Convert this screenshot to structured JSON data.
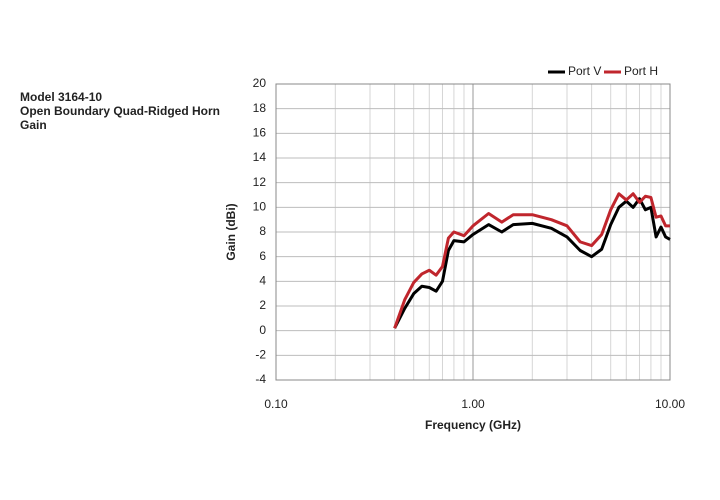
{
  "chart_data": {
    "type": "line",
    "title_lines": [
      "Model 3164-10",
      "Open Boundary Quad-Ridged Horn",
      "Gain"
    ],
    "x_label": "Frequency (GHz)",
    "y_label": "Gain (dBi)",
    "log_x": true,
    "grid": true,
    "legend": "top-right",
    "x": [
      0.4,
      0.45,
      0.5,
      0.55,
      0.6,
      0.65,
      0.7,
      0.75,
      0.8,
      0.9,
      1.0,
      1.2,
      1.4,
      1.6,
      2.0,
      2.5,
      3.0,
      3.5,
      4.0,
      4.5,
      5.0,
      5.5,
      6.0,
      6.5,
      7.0,
      7.5,
      8.0,
      8.5,
      9.0,
      9.5,
      10.0
    ],
    "series": [
      {
        "name": "Port V",
        "color": "#000000",
        "values": [
          0.2,
          1.8,
          3.0,
          3.6,
          3.5,
          3.2,
          4.0,
          6.5,
          7.3,
          7.2,
          7.8,
          8.6,
          8.0,
          8.6,
          8.7,
          8.3,
          7.6,
          6.5,
          6.0,
          6.6,
          8.6,
          10.0,
          10.5,
          10.0,
          10.7,
          9.8,
          10.0,
          7.6,
          8.4,
          7.6,
          7.4
        ]
      },
      {
        "name": "Port H",
        "color": "#c0262d",
        "values": [
          0.2,
          2.5,
          3.9,
          4.6,
          4.9,
          4.5,
          5.2,
          7.5,
          8.0,
          7.7,
          8.5,
          9.5,
          8.8,
          9.4,
          9.4,
          9.0,
          8.5,
          7.2,
          6.9,
          7.8,
          9.8,
          11.1,
          10.6,
          11.1,
          10.4,
          10.9,
          10.8,
          9.2,
          9.3,
          8.5,
          8.5
        ]
      }
    ],
    "xlim": [
      0.1,
      10
    ],
    "xticks": [
      {
        "value": 0.1,
        "label": "0.10"
      },
      {
        "value": 1,
        "label": "1.00"
      },
      {
        "value": 10,
        "label": "10.00"
      }
    ],
    "ylim": [
      -4,
      20
    ],
    "yticks": [
      -4,
      -2,
      0,
      2,
      4,
      6,
      8,
      10,
      12,
      14,
      16,
      18,
      20
    ]
  }
}
